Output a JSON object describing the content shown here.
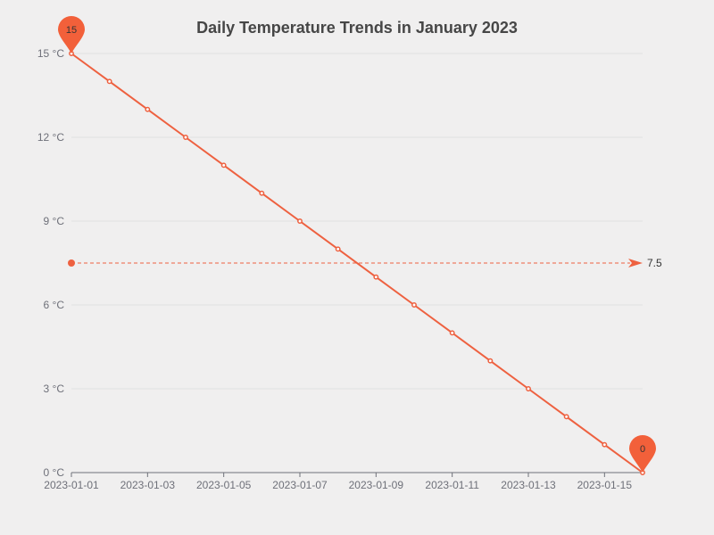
{
  "chart_data": {
    "type": "line",
    "title": "Daily Temperature Trends in January 2023",
    "x": [
      "2023-01-01",
      "2023-01-02",
      "2023-01-03",
      "2023-01-04",
      "2023-01-05",
      "2023-01-06",
      "2023-01-07",
      "2023-01-08",
      "2023-01-09",
      "2023-01-10",
      "2023-01-11",
      "2023-01-12",
      "2023-01-13",
      "2023-01-14",
      "2023-01-15",
      "2023-01-16"
    ],
    "x_tick_labels": [
      "2023-01-01",
      "2023-01-03",
      "2023-01-05",
      "2023-01-07",
      "2023-01-09",
      "2023-01-11",
      "2023-01-13",
      "2023-01-15"
    ],
    "series": [
      {
        "values": [
          15,
          14,
          13,
          12,
          11,
          10,
          9,
          8,
          7,
          6,
          5,
          4,
          3,
          2,
          1,
          0
        ]
      }
    ],
    "ylim": [
      0,
      15
    ],
    "y_ticks": [
      0,
      3,
      6,
      9,
      12,
      15
    ],
    "y_tick_format": "{v} °C",
    "mark_points": {
      "max": {
        "label": "15",
        "index": 0
      },
      "min": {
        "label": "0",
        "index": 15
      }
    },
    "average_line": {
      "value": 7.5,
      "label": "7.5"
    },
    "grid": true,
    "colors": {
      "series": "#ee6140",
      "grid": "#e0e0e0",
      "axis": "#6e7079",
      "pin": "#f2603a"
    }
  }
}
